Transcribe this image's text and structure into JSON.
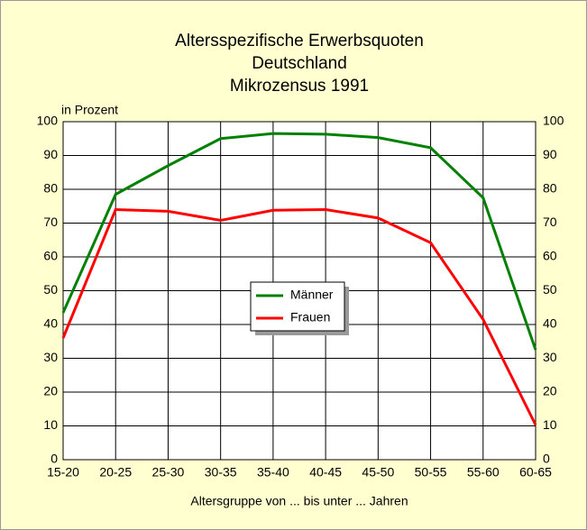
{
  "chart_data": {
    "type": "line",
    "title": [
      "Altersspezifische Erwerbsquoten",
      "Deutschland",
      "Mikrozensus 1991"
    ],
    "y_label": "in Prozent",
    "x_label": "Altersgruppe von ... bis unter ... Jahren",
    "categories": [
      "15-20",
      "20-25",
      "25-30",
      "30-35",
      "35-40",
      "40-45",
      "45-50",
      "50-55",
      "55-60",
      "60-65"
    ],
    "series": [
      {
        "name": "Männer",
        "color": "#008000",
        "values": [
          43.5,
          78.5,
          87,
          95,
          96.5,
          96.3,
          95.3,
          92.3,
          77.5,
          32.5
        ]
      },
      {
        "name": "Frauen",
        "color": "#ff0000",
        "values": [
          36,
          74,
          73.5,
          70.8,
          73.8,
          74,
          71.5,
          64.2,
          41.5,
          10.3
        ]
      }
    ],
    "ylim": [
      0,
      100
    ],
    "yticks": [
      0,
      10,
      20,
      30,
      40,
      50,
      60,
      70,
      80,
      90,
      100
    ],
    "grid": true
  }
}
